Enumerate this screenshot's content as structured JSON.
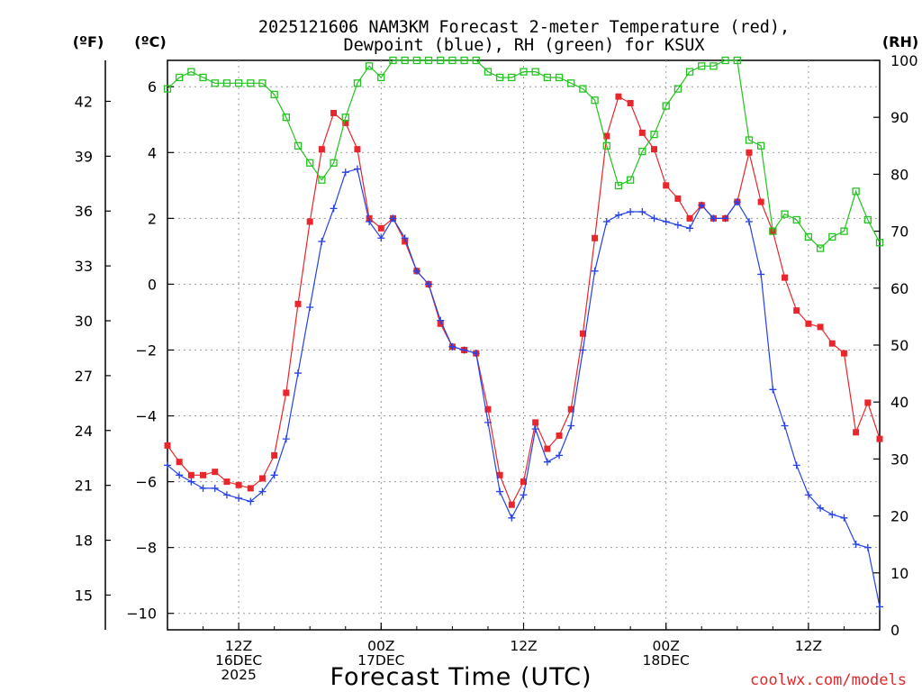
{
  "chart_data": {
    "type": "line",
    "title_line1": "2025121606 NAM3KM Forecast 2-meter Temperature (red),",
    "title_line2": "Dewpoint (blue), RH (green) for KSUX",
    "xlabel": "Forecast Time (UTC)",
    "credit": "coolwx.com/models",
    "left_unit_f": "(ºF)",
    "left_unit_c": "(ºC)",
    "right_unit": "(RH)",
    "hours_range": [
      0,
      60
    ],
    "c_range": [
      -10.5,
      6.8
    ],
    "rh_range": [
      0,
      100
    ],
    "f_ticks": [
      15,
      18,
      21,
      24,
      27,
      30,
      33,
      36,
      39,
      42
    ],
    "c_ticks": [
      -10,
      -8,
      -6,
      -4,
      -2,
      0,
      2,
      4,
      6
    ],
    "rh_ticks": [
      0,
      10,
      20,
      30,
      40,
      50,
      60,
      70,
      80,
      90,
      100
    ],
    "x_ticks": [
      {
        "hour": 6,
        "label1": "12Z",
        "label2": "16DEC",
        "label3": "2025"
      },
      {
        "hour": 18,
        "label1": "00Z",
        "label2": "17DEC",
        "label3": ""
      },
      {
        "hour": 30,
        "label1": "12Z",
        "label2": "",
        "label3": ""
      },
      {
        "hour": 42,
        "label1": "00Z",
        "label2": "18DEC",
        "label3": ""
      },
      {
        "hour": 54,
        "label1": "12Z",
        "label2": "",
        "label3": ""
      }
    ],
    "hours": [
      0,
      1,
      2,
      3,
      4,
      5,
      6,
      7,
      8,
      9,
      10,
      11,
      12,
      13,
      14,
      15,
      16,
      17,
      18,
      19,
      20,
      21,
      22,
      23,
      24,
      25,
      26,
      27,
      28,
      29,
      30,
      31,
      32,
      33,
      34,
      35,
      36,
      37,
      38,
      39,
      40,
      41,
      42,
      43,
      44,
      45,
      46,
      47,
      48,
      49,
      50,
      51,
      52,
      53,
      54,
      55,
      56,
      57,
      58,
      59,
      60
    ],
    "series": [
      {
        "name": "Temperature",
        "color": "#e8262b",
        "unit": "C",
        "marker": "filled-square",
        "values": [
          -4.9,
          -5.4,
          -5.8,
          -5.8,
          -5.7,
          -6.0,
          -6.1,
          -6.2,
          -5.9,
          -5.2,
          -3.3,
          -0.6,
          1.9,
          4.1,
          5.2,
          4.9,
          4.1,
          2.0,
          1.7,
          2.0,
          1.3,
          0.4,
          0.0,
          -1.2,
          -1.9,
          -2.0,
          -2.1,
          -3.8,
          -5.8,
          -6.7,
          -6.0,
          -4.2,
          -5.0,
          -4.6,
          -3.8,
          -1.5,
          1.4,
          4.5,
          5.7,
          5.5,
          4.6,
          4.1,
          3.0,
          2.6,
          2.0,
          2.4,
          2.0,
          2.0,
          2.5,
          4.0,
          2.5,
          1.6,
          0.2,
          -0.8,
          -1.2,
          -1.3,
          -1.8,
          -2.1,
          -4.5,
          -3.6,
          -4.7
        ]
      },
      {
        "name": "Dewpoint",
        "color": "#2542e8",
        "unit": "C",
        "marker": "plus",
        "values": [
          -5.5,
          -5.8,
          -6.0,
          -6.2,
          -6.2,
          -6.4,
          -6.5,
          -6.6,
          -6.3,
          -5.8,
          -4.7,
          -2.7,
          -0.7,
          1.3,
          2.3,
          3.4,
          3.5,
          1.9,
          1.4,
          2.0,
          1.4,
          0.4,
          0.0,
          -1.1,
          -1.9,
          -2.0,
          -2.1,
          -4.2,
          -6.3,
          -7.1,
          -6.4,
          -4.4,
          -5.4,
          -5.2,
          -4.3,
          -2.0,
          0.4,
          1.9,
          2.1,
          2.2,
          2.2,
          2.0,
          1.9,
          1.8,
          1.7,
          2.4,
          2.0,
          2.0,
          2.5,
          1.9,
          0.3,
          -3.2,
          -4.3,
          -5.5,
          -6.4,
          -6.8,
          -7.0,
          -7.1,
          -7.9,
          -8.0,
          -9.8
        ]
      },
      {
        "name": "RH",
        "color": "#22c41f",
        "unit": "%",
        "marker": "open-square",
        "values": [
          95,
          97,
          98,
          97,
          96,
          96,
          96,
          96,
          96,
          94,
          90,
          85,
          82,
          79,
          82,
          90,
          96,
          99,
          97,
          100,
          100,
          100,
          100,
          100,
          100,
          100,
          100,
          98,
          97,
          97,
          98,
          98,
          97,
          97,
          96,
          95,
          93,
          85,
          78,
          79,
          84,
          87,
          92,
          95,
          98,
          99,
          99,
          100,
          100,
          86,
          85,
          70,
          73,
          72,
          69,
          67,
          69,
          70,
          77,
          72,
          68
        ]
      }
    ]
  }
}
